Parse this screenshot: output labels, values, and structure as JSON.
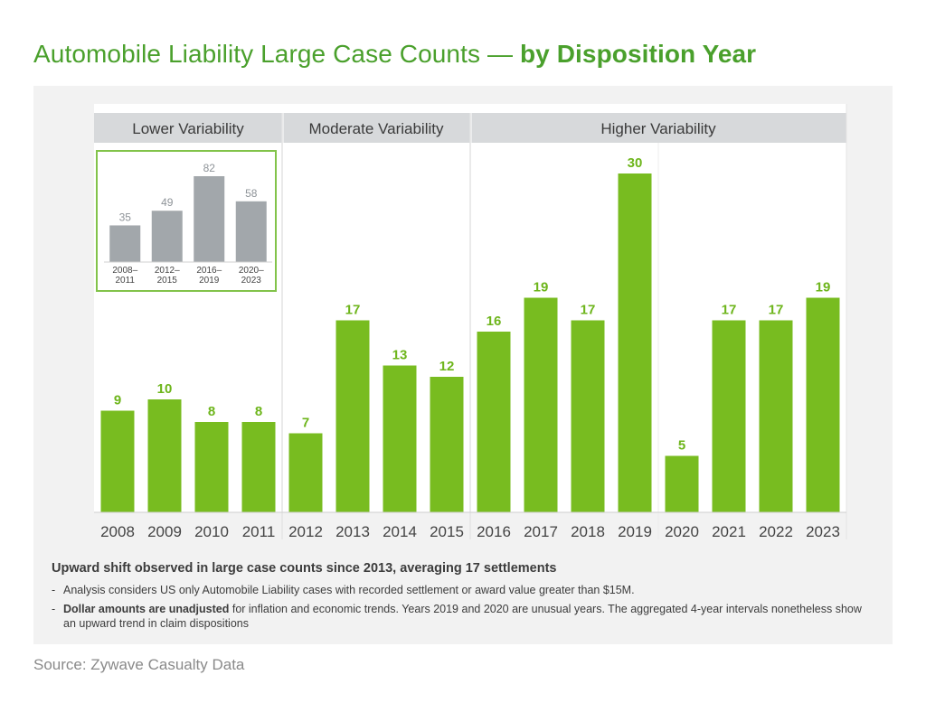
{
  "title": {
    "main": "Automobile Liability Large Case Counts — ",
    "emphasis": "by Disposition Year"
  },
  "colors": {
    "bar": "#78bc20",
    "label": "#6db51b",
    "inset_bar": "#a2a7ab",
    "inset_label": "#8e9398",
    "band_bg": "#d7d9db",
    "inset_border": "#82c34a",
    "axis_text": "#444444"
  },
  "chart_data": [
    {
      "type": "bar",
      "title": "Automobile Liability Large Case Counts — by Disposition Year",
      "xlabel": "",
      "ylabel": "",
      "ylim": [
        0,
        30
      ],
      "grid": false,
      "categories": [
        "2008",
        "2009",
        "2010",
        "2011",
        "2012",
        "2013",
        "2014",
        "2015",
        "2016",
        "2017",
        "2018",
        "2019",
        "2020",
        "2021",
        "2022",
        "2023"
      ],
      "values": [
        9,
        10,
        8,
        8,
        7,
        17,
        13,
        12,
        16,
        19,
        17,
        30,
        5,
        17,
        17,
        19
      ],
      "groups": [
        {
          "label": "Lower Variability",
          "categories": [
            "2008",
            "2009",
            "2010",
            "2011"
          ]
        },
        {
          "label": "Moderate Variability",
          "categories": [
            "2012",
            "2013",
            "2014",
            "2015"
          ]
        },
        {
          "label": "Higher Variability",
          "categories": [
            "2016",
            "2017",
            "2018",
            "2019",
            "2020",
            "2021",
            "2022",
            "2023"
          ]
        }
      ]
    },
    {
      "type": "bar",
      "title": "",
      "ylim": [
        0,
        82
      ],
      "categories": [
        [
          "2008–",
          "2011"
        ],
        [
          "2012–",
          "2015"
        ],
        [
          "2016–",
          "2019"
        ],
        [
          "2020–",
          "2023"
        ]
      ],
      "values": [
        35,
        49,
        82,
        58
      ]
    }
  ],
  "notes": {
    "headline": "Upward shift observed in large case counts since 2013, averaging 17 settlements",
    "bullets": [
      {
        "dash": "-",
        "bold": "",
        "text": "Analysis considers US only Automobile Liability cases with recorded settlement or award value greater than $15M."
      },
      {
        "dash": "-",
        "bold": "Dollar amounts are unadjusted",
        "text": " for inflation and economic trends. Years 2019 and 2020 are unusual years. The aggregated 4-year intervals nonetheless show an upward trend in claim dispositions"
      }
    ]
  },
  "source": "Source: Zywave Casualty Data"
}
